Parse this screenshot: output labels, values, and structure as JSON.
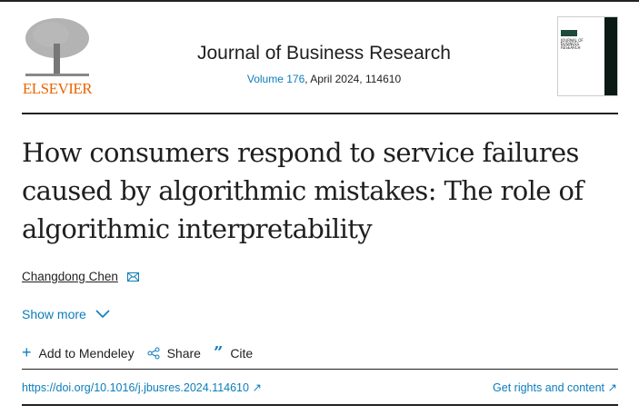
{
  "publisher": {
    "logo_text": "ELSEVIER",
    "brand_color": "#eb6500"
  },
  "journal": {
    "title": "Journal of Business Research",
    "volume_link": "Volume 176",
    "issue_rest": ", April 2024, 114610",
    "cover_text": "JOURNAL OF BUSINESS RESEARCH"
  },
  "article": {
    "title": "How consumers respond to service failures caused by algorithmic mistakes: The role of algorithmic interpretability",
    "author": "Changdong Chen",
    "show_more": "Show more"
  },
  "actions": {
    "mendeley": "Add to Mendeley",
    "share": "Share",
    "cite": "Cite"
  },
  "links": {
    "doi": "https://doi.org/10.1016/j.jbusres.2024.114610",
    "rights": "Get rights and content"
  },
  "colors": {
    "link": "#0c7dbb",
    "text": "#1f1f1f"
  }
}
